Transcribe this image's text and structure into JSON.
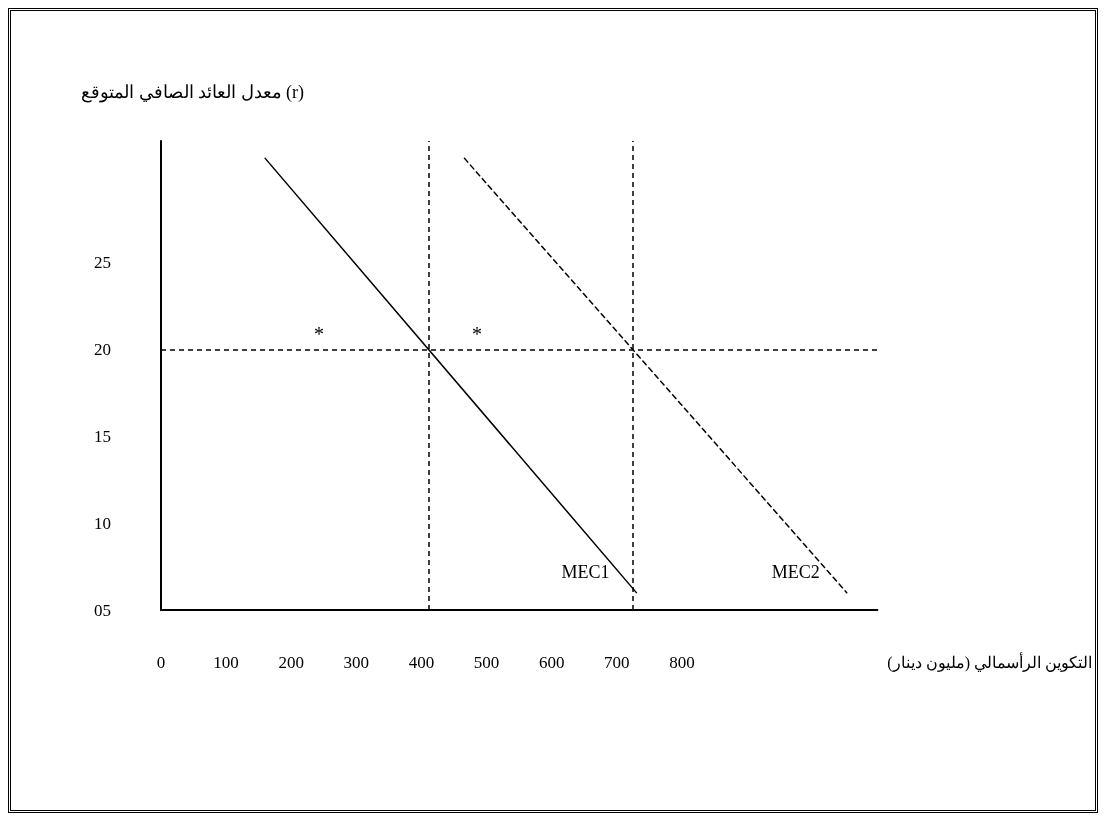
{
  "chart_data": {
    "type": "line",
    "ylabel": "معدل العائد الصافي المتوقع (r)",
    "xlabel": "التكوين الرأسمالي (مليون دينار)",
    "xlim": [
      0,
      1100
    ],
    "xticks": [
      0,
      100,
      200,
      300,
      400,
      500,
      600,
      700,
      800
    ],
    "ylim": [
      5,
      32
    ],
    "yticks": [
      {
        "value": 5,
        "label": "05"
      },
      10,
      15,
      20,
      25
    ],
    "series": [
      {
        "name": "MEC1",
        "color": "#000000",
        "line_style": "solid",
        "x": [
          160,
          730
        ],
        "values": [
          31,
          6
        ]
      },
      {
        "name": "MEC2",
        "color": "#000000",
        "line_style": "dashed",
        "x": [
          466,
          1053
        ],
        "values": [
          31,
          6
        ]
      }
    ],
    "ref_lines": [
      {
        "axis": "y",
        "value": 20,
        "label": null,
        "line_style": "dashed",
        "color": "#000000"
      },
      {
        "axis": "x",
        "value": 411,
        "label": null,
        "line_style": "dashed",
        "color": "#000000"
      },
      {
        "axis": "x",
        "value": 724,
        "label": null,
        "line_style": "dashed",
        "color": "#000000"
      }
    ],
    "annotations": [
      "*",
      "*"
    ],
    "grid": false,
    "legend": false,
    "marker": "none"
  }
}
